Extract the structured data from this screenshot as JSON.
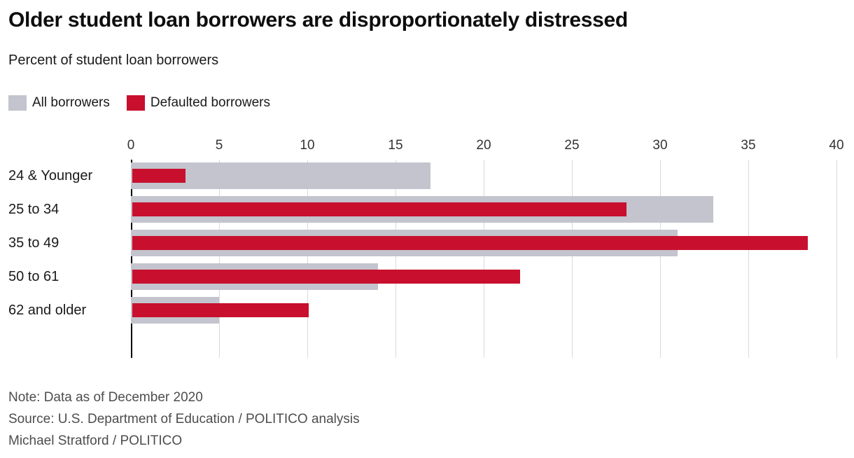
{
  "header": {
    "title": "Older student loan borrowers are disproportionately distressed",
    "subtitle": "Percent of student loan borrowers"
  },
  "legend": [
    {
      "label": "All borrowers",
      "color": "#c3c4cd"
    },
    {
      "label": "Defaulted borrowers",
      "color": "#c8102e"
    }
  ],
  "chart_data": {
    "type": "bar",
    "orientation": "horizontal",
    "title": "Older student loan borrowers are disproportionately distressed",
    "subtitle": "Percent of student loan borrowers",
    "categories": [
      "24 & Younger",
      "25 to 34",
      "35 to 49",
      "50 to 61",
      "62 and older"
    ],
    "series": [
      {
        "name": "All borrowers",
        "color": "#c3c4cd",
        "values": [
          17,
          33,
          31,
          14,
          5
        ]
      },
      {
        "name": "Defaulted borrowers",
        "color": "#c8102e",
        "values": [
          3,
          28,
          38.3,
          22,
          10
        ]
      }
    ],
    "xlabel": "",
    "ylabel": "",
    "xlim": [
      0,
      40
    ],
    "xticks": [
      0,
      5,
      10,
      15,
      20,
      25,
      30,
      35,
      40
    ],
    "grid": true,
    "grid_color": "#d9d9d9",
    "axis_color": "#000000",
    "legend_position": "top-left"
  },
  "footer": {
    "note": "Note: Data as of December 2020",
    "source": "Source: U.S. Department of Education / POLITICO analysis",
    "byline": "Michael Stratford / POLITICO"
  }
}
